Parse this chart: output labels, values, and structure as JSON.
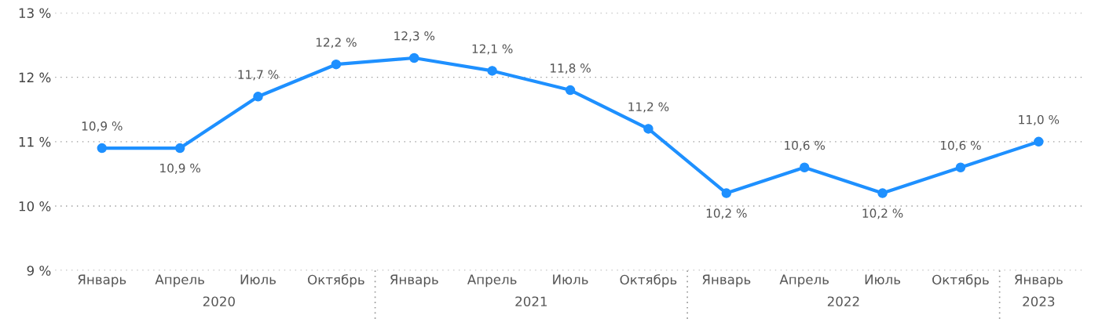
{
  "chart_data": {
    "type": "line",
    "categories": [
      "Январь",
      "Апрель",
      "Июль",
      "Октябрь",
      "Январь",
      "Апрель",
      "Июль",
      "Октябрь",
      "Январь",
      "Апрель",
      "Июль",
      "Октябрь",
      "Январь"
    ],
    "series": [
      {
        "color": "#1e90ff",
        "values": [
          10.9,
          10.9,
          11.7,
          12.2,
          12.3,
          12.1,
          11.8,
          11.2,
          10.2,
          10.6,
          10.2,
          10.6,
          11.0
        ],
        "value_labels": [
          "10,9 %",
          "10,9 %",
          "11,7 %",
          "12,2 %",
          "12,3 %",
          "12,1 %",
          "11,8 %",
          "11,2 %",
          "10,2 %",
          "10,6 %",
          "10,2 %",
          "10,6 %",
          "11,0 %"
        ]
      }
    ],
    "ylim": [
      9,
      13
    ],
    "yticks": [
      {
        "value": 9,
        "label": "9 %"
      },
      {
        "value": 10,
        "label": "10 %"
      },
      {
        "value": 11,
        "label": "11 %"
      },
      {
        "value": 12,
        "label": "12 %"
      },
      {
        "value": 13,
        "label": "13 %"
      }
    ],
    "annotations": [
      "2020",
      "2021",
      "2022",
      "2023"
    ],
    "grid": "y",
    "marker": "circle",
    "line_style": "solid",
    "legend": false
  }
}
